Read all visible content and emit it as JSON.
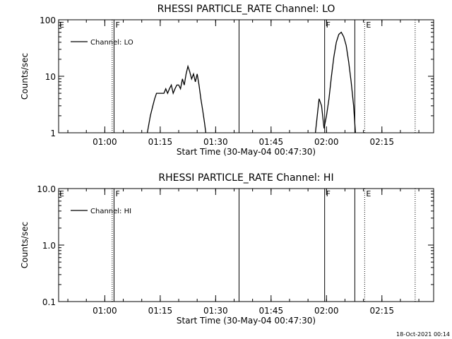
{
  "footer_timestamp": "18-Oct-2021 00:14",
  "chart_data": [
    {
      "type": "line",
      "title": "RHESSI PARTICLE_RATE Channel: LO",
      "xlabel": "Start Time (30-May-04 00:47:30)",
      "ylabel": "Counts/sec",
      "y_scale": "log",
      "ylim": [
        1,
        100
      ],
      "xlim": [
        "00:47:30",
        "02:29:00"
      ],
      "x_ticks": [
        "01:00",
        "01:15",
        "01:30",
        "01:45",
        "02:00",
        "02:15"
      ],
      "y_ticks": [
        "1",
        "10",
        "100"
      ],
      "legend": {
        "position": "top-left",
        "label": "Channel: LO"
      },
      "markers": [
        {
          "time": "01:02:00",
          "style": "dotted",
          "label": ""
        },
        {
          "time": "01:02:30",
          "style": "solid",
          "label": "F"
        },
        {
          "time": "01:36:20",
          "style": "solid",
          "label": ""
        },
        {
          "time": "01:59:30",
          "style": "solid",
          "label": "F"
        },
        {
          "time": "02:07:40",
          "style": "solid",
          "label": ""
        },
        {
          "time": "02:10:20",
          "style": "dotted",
          "label": "E"
        },
        {
          "time": "02:24:00",
          "style": "dotted",
          "label": ""
        }
      ],
      "edge_label": "E",
      "series": [
        {
          "x": [
            "01:11:30",
            "01:12:20",
            "01:13:00",
            "01:13:30",
            "01:14:00",
            "01:15:00",
            "01:16:00",
            "01:16:30",
            "01:17:00",
            "01:17:30",
            "01:18:00",
            "01:18:30",
            "01:19:00",
            "01:19:30",
            "01:20:00",
            "01:20:30",
            "01:21:00",
            "01:21:30",
            "01:22:00",
            "01:22:30",
            "01:23:00",
            "01:23:30",
            "01:24:00",
            "01:24:30",
            "01:25:00",
            "01:25:30",
            "01:26:00",
            "01:26:30",
            "01:27:00",
            "01:27:20"
          ],
          "y": [
            1,
            2,
            3,
            4,
            5,
            5,
            5,
            6,
            5,
            6,
            7,
            5,
            6,
            7,
            7,
            6,
            9,
            7,
            11,
            15,
            12,
            9,
            11,
            8,
            11,
            7,
            4,
            2.5,
            1.5,
            1
          ]
        },
        {
          "x": [
            "01:57:00",
            "01:57:30",
            "01:58:00",
            "01:58:40",
            "01:59:20",
            "02:00:00",
            "02:00:40",
            "02:01:20",
            "02:02:00",
            "02:02:40",
            "02:03:20",
            "02:04:00",
            "02:04:40",
            "02:05:20",
            "02:06:00",
            "02:06:40",
            "02:07:20",
            "02:07:50"
          ],
          "y": [
            1,
            2,
            4,
            3,
            1.2,
            2,
            4,
            10,
            22,
            40,
            55,
            60,
            50,
            35,
            18,
            8,
            3,
            1
          ]
        }
      ]
    },
    {
      "type": "line",
      "title": "RHESSI PARTICLE_RATE Channel: HI",
      "xlabel": "Start Time (30-May-04 00:47:30)",
      "ylabel": "Counts/sec",
      "y_scale": "log",
      "ylim": [
        0.1,
        10
      ],
      "xlim": [
        "00:47:30",
        "02:29:00"
      ],
      "x_ticks": [
        "01:00",
        "01:15",
        "01:30",
        "01:45",
        "02:00",
        "02:15"
      ],
      "y_ticks": [
        "0.1",
        "1.0",
        "10.0"
      ],
      "legend": {
        "position": "top-left",
        "label": "Channel: HI"
      },
      "markers": [
        {
          "time": "01:02:00",
          "style": "dotted",
          "label": ""
        },
        {
          "time": "01:02:30",
          "style": "solid",
          "label": "F"
        },
        {
          "time": "01:36:20",
          "style": "solid",
          "label": ""
        },
        {
          "time": "01:59:30",
          "style": "solid",
          "label": "F"
        },
        {
          "time": "02:07:40",
          "style": "solid",
          "label": ""
        },
        {
          "time": "02:10:20",
          "style": "dotted",
          "label": "E"
        },
        {
          "time": "02:24:00",
          "style": "dotted",
          "label": ""
        }
      ],
      "edge_label": "E",
      "series": []
    }
  ]
}
